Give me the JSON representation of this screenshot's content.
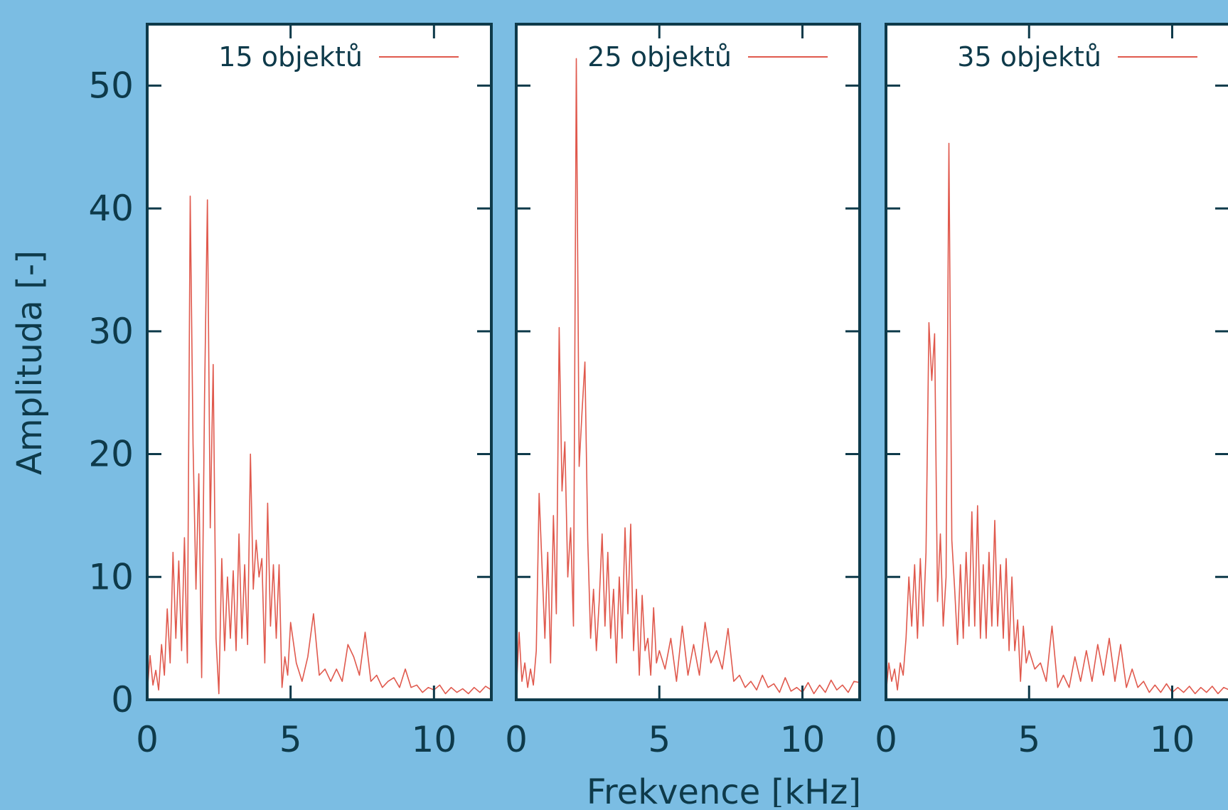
{
  "colors": {
    "background": "#7bbde3",
    "panel": "#ffffff",
    "frame": "#0e3a4a",
    "series": "#e0594d"
  },
  "axes": {
    "ylabel": "Amplituda [-]",
    "xlabel": "Frekvence [kHz]",
    "yticks": [
      "0",
      "10",
      "20",
      "30",
      "40",
      "50"
    ],
    "xticks": [
      "0",
      "5",
      "10"
    ]
  },
  "chart_data": [
    {
      "type": "line",
      "series_name": "15 objektů",
      "xlim": [
        0,
        12
      ],
      "ylim": [
        0,
        55
      ],
      "yticks": [
        0,
        10,
        20,
        30,
        40,
        50
      ],
      "xticks": [
        0,
        5,
        10
      ],
      "grid": false,
      "legend": "top-right",
      "x": [
        0,
        0.1,
        0.2,
        0.3,
        0.4,
        0.5,
        0.6,
        0.7,
        0.8,
        0.9,
        1.0,
        1.1,
        1.2,
        1.3,
        1.4,
        1.5,
        1.6,
        1.7,
        1.8,
        1.9,
        2.0,
        2.1,
        2.2,
        2.3,
        2.4,
        2.5,
        2.6,
        2.7,
        2.8,
        2.9,
        3.0,
        3.1,
        3.2,
        3.3,
        3.4,
        3.5,
        3.6,
        3.7,
        3.8,
        3.9,
        4.0,
        4.1,
        4.2,
        4.3,
        4.4,
        4.5,
        4.6,
        4.7,
        4.8,
        4.9,
        5.0,
        5.2,
        5.4,
        5.6,
        5.8,
        6.0,
        6.2,
        6.4,
        6.6,
        6.8,
        7.0,
        7.2,
        7.4,
        7.6,
        7.8,
        8.0,
        8.2,
        8.4,
        8.6,
        8.8,
        9.0,
        9.2,
        9.4,
        9.6,
        9.8,
        10.0,
        10.2,
        10.4,
        10.6,
        10.8,
        11.0,
        11.2,
        11.4,
        11.6,
        11.8,
        12.0
      ],
      "y": [
        0.5,
        3.6,
        1.2,
        2.4,
        0.8,
        4.5,
        2.0,
        7.4,
        3.0,
        12.0,
        5.0,
        11.3,
        4.0,
        13.2,
        3.0,
        41.0,
        20.8,
        9.0,
        18.4,
        1.8,
        24.8,
        40.7,
        14.0,
        27.3,
        5.0,
        0.5,
        11.5,
        4.0,
        10.0,
        5.0,
        10.5,
        4.0,
        13.5,
        5.0,
        11.0,
        4.5,
        20.0,
        9.0,
        13.0,
        10.0,
        11.5,
        3.0,
        16.0,
        6.0,
        11.0,
        5.0,
        11.0,
        1.0,
        3.5,
        2.0,
        6.3,
        3.0,
        1.5,
        3.5,
        7.0,
        2.0,
        2.5,
        1.5,
        2.5,
        1.5,
        4.5,
        3.5,
        2.0,
        5.5,
        1.5,
        2.0,
        1.0,
        1.5,
        1.8,
        1.0,
        2.5,
        1.0,
        1.2,
        0.6,
        1.0,
        0.8,
        1.2,
        0.5,
        1.0,
        0.6,
        0.9,
        0.5,
        1.0,
        0.6,
        1.1,
        0.8
      ]
    },
    {
      "type": "line",
      "series_name": "25 objektů",
      "xlim": [
        0,
        12
      ],
      "ylim": [
        0,
        55
      ],
      "yticks": [
        0,
        10,
        20,
        30,
        40,
        50
      ],
      "xticks": [
        0,
        5,
        10
      ],
      "grid": false,
      "legend": "top-right",
      "x": [
        0,
        0.1,
        0.2,
        0.3,
        0.4,
        0.5,
        0.6,
        0.7,
        0.8,
        0.9,
        1.0,
        1.1,
        1.2,
        1.3,
        1.4,
        1.5,
        1.6,
        1.7,
        1.8,
        1.9,
        2.0,
        2.1,
        2.2,
        2.3,
        2.4,
        2.5,
        2.6,
        2.7,
        2.8,
        2.9,
        3.0,
        3.1,
        3.2,
        3.3,
        3.4,
        3.5,
        3.6,
        3.7,
        3.8,
        3.9,
        4.0,
        4.1,
        4.2,
        4.3,
        4.4,
        4.5,
        4.6,
        4.7,
        4.8,
        4.9,
        5.0,
        5.2,
        5.4,
        5.6,
        5.8,
        6.0,
        6.2,
        6.4,
        6.6,
        6.8,
        7.0,
        7.2,
        7.4,
        7.6,
        7.8,
        8.0,
        8.2,
        8.4,
        8.6,
        8.8,
        9.0,
        9.2,
        9.4,
        9.6,
        9.8,
        10.0,
        10.2,
        10.4,
        10.6,
        10.8,
        11.0,
        11.2,
        11.4,
        11.6,
        11.8,
        12.0
      ],
      "y": [
        0.5,
        5.5,
        1.5,
        3.0,
        1.0,
        2.5,
        1.2,
        4.0,
        16.8,
        11.0,
        5.0,
        12.0,
        3.0,
        15.0,
        7.0,
        30.3,
        17.0,
        21.0,
        10.0,
        14.0,
        6.0,
        52.2,
        19.0,
        23.5,
        27.5,
        13.0,
        5.0,
        9.0,
        4.0,
        8.0,
        13.5,
        6.0,
        12.0,
        5.0,
        9.0,
        3.0,
        10.0,
        5.0,
        14.0,
        7.0,
        14.3,
        4.0,
        9.0,
        2.0,
        8.5,
        4.0,
        5.0,
        2.0,
        7.5,
        3.0,
        4.0,
        2.5,
        5.0,
        1.5,
        6.0,
        2.0,
        4.5,
        2.0,
        6.3,
        3.0,
        4.0,
        2.5,
        5.8,
        1.5,
        2.0,
        1.0,
        1.5,
        0.8,
        2.0,
        1.0,
        1.3,
        0.6,
        1.8,
        0.7,
        1.0,
        0.6,
        1.4,
        0.5,
        1.2,
        0.6,
        1.6,
        0.8,
        1.2,
        0.6,
        1.5,
        1.4
      ]
    },
    {
      "type": "line",
      "series_name": "35 objektů",
      "xlim": [
        0,
        12
      ],
      "ylim": [
        0,
        55
      ],
      "yticks": [
        0,
        10,
        20,
        30,
        40,
        50
      ],
      "xticks": [
        0,
        5,
        10
      ],
      "grid": false,
      "legend": "top-right",
      "x": [
        0,
        0.1,
        0.2,
        0.3,
        0.4,
        0.5,
        0.6,
        0.7,
        0.8,
        0.9,
        1.0,
        1.1,
        1.2,
        1.3,
        1.4,
        1.5,
        1.6,
        1.7,
        1.8,
        1.9,
        2.0,
        2.1,
        2.2,
        2.3,
        2.4,
        2.5,
        2.6,
        2.7,
        2.8,
        2.9,
        3.0,
        3.1,
        3.2,
        3.3,
        3.4,
        3.5,
        3.6,
        3.7,
        3.8,
        3.9,
        4.0,
        4.1,
        4.2,
        4.3,
        4.4,
        4.5,
        4.6,
        4.7,
        4.8,
        4.9,
        5.0,
        5.2,
        5.4,
        5.6,
        5.8,
        6.0,
        6.2,
        6.4,
        6.6,
        6.8,
        7.0,
        7.2,
        7.4,
        7.6,
        7.8,
        8.0,
        8.2,
        8.4,
        8.6,
        8.8,
        9.0,
        9.2,
        9.4,
        9.6,
        9.8,
        10.0,
        10.2,
        10.4,
        10.6,
        10.8,
        11.0,
        11.2,
        11.4,
        11.6,
        11.8,
        12.0
      ],
      "y": [
        0.5,
        3.0,
        1.5,
        2.5,
        0.8,
        3.0,
        2.0,
        5.0,
        10.0,
        6.0,
        11.0,
        5.0,
        11.5,
        6.0,
        12.0,
        30.7,
        26.0,
        29.8,
        8.0,
        13.5,
        6.0,
        10.0,
        45.3,
        13.0,
        9.0,
        4.5,
        11.0,
        5.0,
        12.0,
        6.0,
        15.3,
        6.0,
        15.8,
        5.0,
        11.0,
        5.0,
        12.0,
        6.0,
        14.6,
        6.0,
        11.0,
        5.0,
        11.5,
        4.0,
        10.0,
        4.0,
        6.5,
        1.5,
        6.0,
        3.0,
        4.0,
        2.5,
        3.0,
        1.5,
        6.0,
        1.0,
        2.0,
        1.0,
        3.5,
        1.5,
        4.0,
        1.5,
        4.5,
        2.0,
        5.0,
        1.5,
        4.5,
        1.0,
        2.5,
        1.0,
        1.5,
        0.6,
        1.2,
        0.6,
        1.3,
        0.6,
        1.0,
        0.6,
        1.1,
        0.5,
        1.0,
        0.6,
        1.1,
        0.5,
        1.0,
        0.8
      ]
    }
  ]
}
